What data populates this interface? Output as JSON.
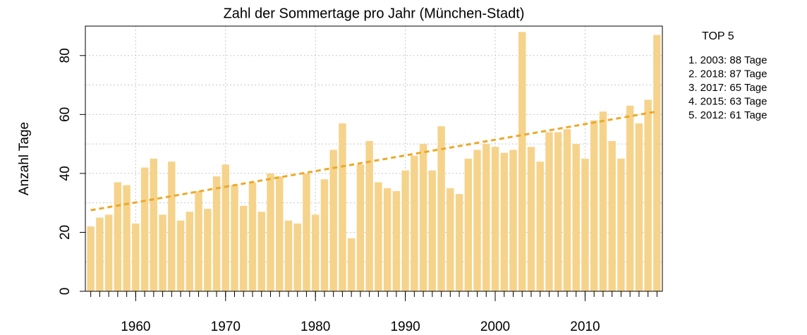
{
  "chart_data": {
    "type": "bar",
    "title": "Zahl der Sommertage pro Jahr (München-Stadt)",
    "y_label": "Anzahl Tage",
    "x": [
      1955,
      1956,
      1957,
      1958,
      1959,
      1960,
      1961,
      1962,
      1963,
      1964,
      1965,
      1966,
      1967,
      1968,
      1969,
      1970,
      1971,
      1972,
      1973,
      1974,
      1975,
      1976,
      1977,
      1978,
      1979,
      1980,
      1981,
      1982,
      1983,
      1984,
      1985,
      1986,
      1987,
      1988,
      1989,
      1990,
      1991,
      1992,
      1993,
      1994,
      1995,
      1996,
      1997,
      1998,
      1999,
      2000,
      2001,
      2002,
      2003,
      2004,
      2005,
      2006,
      2007,
      2008,
      2009,
      2010,
      2011,
      2012,
      2013,
      2014,
      2015,
      2016,
      2017,
      2018
    ],
    "values": [
      22,
      25,
      26,
      37,
      36,
      23,
      42,
      45,
      26,
      44,
      24,
      27,
      34,
      28,
      39,
      43,
      36,
      29,
      37,
      27,
      40,
      39,
      24,
      23,
      40,
      26,
      38,
      48,
      57,
      18,
      43,
      51,
      37,
      35,
      34,
      41,
      46,
      50,
      41,
      56,
      35,
      33,
      45,
      48,
      50,
      49,
      47,
      48,
      88,
      49,
      44,
      54,
      54,
      55,
      50,
      45,
      58,
      61,
      51,
      45,
      63,
      57,
      65,
      87
    ],
    "color": "#f6d38b",
    "trend": {
      "x": [
        1955,
        2018
      ],
      "values": [
        27.5,
        61
      ],
      "color": "#eca928"
    },
    "xlim": [
      1954.4,
      2018.6
    ],
    "xticks": [
      1960,
      1970,
      1980,
      1990,
      2000,
      2010
    ],
    "ylim": [
      0,
      90
    ],
    "yticks": [
      0,
      20,
      40,
      60,
      80
    ],
    "y_minor_grid": [
      10,
      30,
      50,
      70,
      90
    ],
    "grid": true,
    "legend_title": "TOP 5",
    "legend_items": [
      "1. 2003: 88 Tage",
      "2. 2018: 87 Tage",
      "3. 2017: 65 Tage",
      "4. 2015: 63 Tage",
      "5. 2012: 61 Tage"
    ]
  }
}
